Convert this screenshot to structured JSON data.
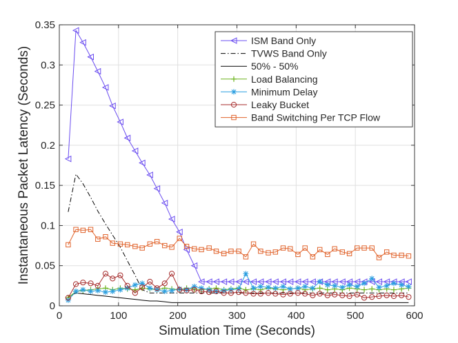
{
  "chart_data": {
    "type": "line",
    "title": "",
    "xlabel": "Simulation Time (Seconds)",
    "ylabel": "Instantaneous Packet Latency (Seconds)",
    "xlim": [
      0,
      600
    ],
    "ylim": [
      0,
      0.35
    ],
    "xticks": [
      0,
      100,
      200,
      300,
      400,
      500,
      600
    ],
    "xtick_labels": [
      "0",
      "100",
      "200",
      "300",
      "400",
      "500",
      "600"
    ],
    "yticks": [
      0,
      0.05,
      0.1,
      0.15,
      0.2,
      0.25,
      0.3,
      0.35
    ],
    "ytick_labels": [
      "0",
      "0.05",
      "0.1",
      "0.15",
      "0.2",
      "0.25",
      "0.3",
      "0.35"
    ],
    "grid": true,
    "legend_position": "top-right",
    "series": [
      {
        "name": "ISM Band Only",
        "color": "#6a4cf0",
        "marker": "triangle-left",
        "x": [
          15,
          28,
          40,
          53,
          65,
          78,
          90,
          103,
          115,
          128,
          140,
          153,
          165,
          178,
          190,
          203,
          215,
          228,
          240,
          253,
          265,
          278,
          290,
          303,
          315,
          328,
          340,
          353,
          365,
          378,
          390,
          403,
          415,
          428,
          440,
          453,
          465,
          478,
          490,
          503,
          515,
          528,
          540,
          553,
          565,
          578,
          590
        ],
        "y": [
          0.183,
          0.343,
          0.328,
          0.31,
          0.292,
          0.272,
          0.249,
          0.229,
          0.209,
          0.193,
          0.178,
          0.163,
          0.146,
          0.128,
          0.108,
          0.092,
          0.07,
          0.05,
          0.03,
          0.03,
          0.03,
          0.03,
          0.03,
          0.03,
          0.03,
          0.03,
          0.03,
          0.03,
          0.03,
          0.03,
          0.03,
          0.03,
          0.03,
          0.03,
          0.03,
          0.03,
          0.03,
          0.03,
          0.03,
          0.03,
          0.03,
          0.03,
          0.03,
          0.03,
          0.03,
          0.03,
          0.03
        ]
      },
      {
        "name": "TVWS Band Only",
        "color": "#000000",
        "dash": "dashdot",
        "x": [
          15,
          28,
          40,
          53,
          65,
          78,
          90,
          103,
          115,
          128,
          140,
          153,
          165,
          178,
          190,
          203,
          215,
          228,
          240,
          253,
          265,
          278,
          290,
          303,
          315,
          328,
          340,
          353,
          365,
          378,
          390,
          403,
          415,
          428,
          440,
          453,
          465,
          478,
          490,
          503,
          515,
          528,
          540,
          553,
          565,
          578,
          590
        ],
        "y": [
          0.117,
          0.164,
          0.152,
          0.135,
          0.118,
          0.102,
          0.088,
          0.073,
          0.056,
          0.038,
          0.02,
          0.016,
          0.016,
          0.016,
          0.016,
          0.016,
          0.016,
          0.016,
          0.016,
          0.016,
          0.016,
          0.016,
          0.016,
          0.016,
          0.016,
          0.016,
          0.016,
          0.016,
          0.016,
          0.016,
          0.016,
          0.016,
          0.016,
          0.016,
          0.016,
          0.016,
          0.016,
          0.016,
          0.016,
          0.016,
          0.016,
          0.016,
          0.016,
          0.016,
          0.016,
          0.016,
          0.016
        ]
      },
      {
        "name": "50% - 50%",
        "color": "#000000",
        "x": [
          15,
          28,
          40,
          53,
          65,
          78,
          90,
          103,
          115,
          128,
          140,
          153,
          165,
          178,
          190,
          203,
          215,
          228,
          240,
          253,
          265,
          278,
          290,
          303,
          315,
          328,
          340,
          353,
          365,
          378,
          390,
          403,
          415,
          428,
          440,
          453,
          465,
          478,
          490,
          503,
          515,
          528,
          540,
          553,
          565,
          578,
          590
        ],
        "y": [
          0.011,
          0.016,
          0.015,
          0.014,
          0.013,
          0.012,
          0.011,
          0.01,
          0.009,
          0.008,
          0.007,
          0.006,
          0.006,
          0.005,
          0.004,
          0.004,
          0.004,
          0.004,
          0.004,
          0.004,
          0.004,
          0.004,
          0.004,
          0.004,
          0.004,
          0.004,
          0.004,
          0.004,
          0.004,
          0.004,
          0.004,
          0.004,
          0.004,
          0.004,
          0.004,
          0.004,
          0.004,
          0.004,
          0.004,
          0.004,
          0.004,
          0.004,
          0.004,
          0.004,
          0.004,
          0.004,
          0.004
        ]
      },
      {
        "name": "Load Balancing",
        "color": "#6bb31c",
        "marker": "plus",
        "x": [
          15,
          28,
          40,
          53,
          65,
          78,
          90,
          103,
          115,
          128,
          140,
          153,
          165,
          178,
          190,
          203,
          215,
          228,
          240,
          253,
          265,
          278,
          290,
          303,
          315,
          328,
          340,
          353,
          365,
          378,
          390,
          403,
          415,
          428,
          440,
          453,
          465,
          478,
          490,
          503,
          515,
          528,
          540,
          553,
          565,
          578,
          590
        ],
        "y": [
          0.01,
          0.018,
          0.019,
          0.02,
          0.021,
          0.022,
          0.02,
          0.022,
          0.021,
          0.02,
          0.022,
          0.021,
          0.02,
          0.022,
          0.021,
          0.02,
          0.022,
          0.021,
          0.02,
          0.021,
          0.022,
          0.02,
          0.021,
          0.022,
          0.02,
          0.021,
          0.02,
          0.022,
          0.021,
          0.02,
          0.021,
          0.022,
          0.02,
          0.021,
          0.022,
          0.02,
          0.021,
          0.02,
          0.022,
          0.021,
          0.02,
          0.021,
          0.02,
          0.021,
          0.02,
          0.021,
          0.022
        ]
      },
      {
        "name": "Minimum Delay",
        "color": "#2a9ee0",
        "marker": "asterisk",
        "x": [
          15,
          28,
          40,
          53,
          65,
          78,
          90,
          103,
          115,
          128,
          140,
          153,
          165,
          178,
          190,
          203,
          215,
          228,
          240,
          253,
          265,
          278,
          290,
          303,
          315,
          328,
          340,
          353,
          365,
          378,
          390,
          403,
          415,
          428,
          440,
          453,
          465,
          478,
          490,
          503,
          515,
          528,
          540,
          553,
          565,
          578,
          590
        ],
        "y": [
          0.007,
          0.018,
          0.02,
          0.018,
          0.019,
          0.017,
          0.018,
          0.02,
          0.022,
          0.026,
          0.028,
          0.022,
          0.02,
          0.018,
          0.019,
          0.021,
          0.02,
          0.024,
          0.022,
          0.02,
          0.018,
          0.019,
          0.02,
          0.021,
          0.04,
          0.022,
          0.024,
          0.023,
          0.022,
          0.024,
          0.021,
          0.022,
          0.024,
          0.022,
          0.03,
          0.026,
          0.025,
          0.023,
          0.026,
          0.024,
          0.028,
          0.034,
          0.023,
          0.025,
          0.028,
          0.026,
          0.024
        ]
      },
      {
        "name": "Leaky Bucket",
        "color": "#a52a2a",
        "marker": "circle",
        "x": [
          15,
          28,
          40,
          53,
          65,
          78,
          90,
          103,
          115,
          128,
          140,
          153,
          165,
          178,
          190,
          203,
          215,
          228,
          240,
          253,
          265,
          278,
          290,
          303,
          315,
          328,
          340,
          353,
          365,
          378,
          390,
          403,
          415,
          428,
          440,
          453,
          465,
          478,
          490,
          503,
          515,
          528,
          540,
          553,
          565,
          578,
          590
        ],
        "y": [
          0.01,
          0.027,
          0.029,
          0.028,
          0.025,
          0.04,
          0.034,
          0.038,
          0.025,
          0.016,
          0.023,
          0.03,
          0.022,
          0.028,
          0.04,
          0.02,
          0.019,
          0.02,
          0.018,
          0.017,
          0.018,
          0.016,
          0.016,
          0.017,
          0.016,
          0.015,
          0.015,
          0.016,
          0.015,
          0.014,
          0.015,
          0.016,
          0.015,
          0.013,
          0.015,
          0.013,
          0.014,
          0.013,
          0.012,
          0.014,
          0.01,
          0.011,
          0.012,
          0.013,
          0.012,
          0.013,
          0.011
        ]
      },
      {
        "name": "Band Switching Per TCP Flow",
        "color": "#e0622a",
        "marker": "square",
        "x": [
          15,
          28,
          40,
          53,
          65,
          78,
          90,
          103,
          115,
          128,
          140,
          153,
          165,
          178,
          190,
          203,
          215,
          228,
          240,
          253,
          265,
          278,
          290,
          303,
          315,
          328,
          340,
          353,
          365,
          378,
          390,
          403,
          415,
          428,
          440,
          453,
          465,
          478,
          490,
          503,
          515,
          528,
          540,
          553,
          565,
          578,
          590
        ],
        "y": [
          0.076,
          0.095,
          0.094,
          0.095,
          0.083,
          0.086,
          0.078,
          0.077,
          0.076,
          0.074,
          0.072,
          0.077,
          0.08,
          0.075,
          0.073,
          0.084,
          0.074,
          0.071,
          0.07,
          0.072,
          0.068,
          0.065,
          0.068,
          0.068,
          0.061,
          0.077,
          0.068,
          0.066,
          0.067,
          0.072,
          0.071,
          0.064,
          0.072,
          0.061,
          0.07,
          0.064,
          0.071,
          0.067,
          0.065,
          0.072,
          0.072,
          0.072,
          0.06,
          0.067,
          0.063,
          0.063,
          0.062
        ]
      }
    ]
  }
}
